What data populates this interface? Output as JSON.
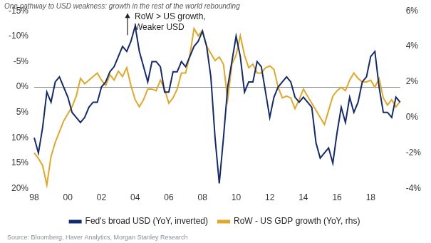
{
  "chart_data": {
    "type": "line",
    "title": "One pathway to USD weakness: growth in the rest of the world rebounding",
    "annotation": [
      "RoW > US growth,",
      "Weaker USD"
    ],
    "source": "Source: Bloomberg, Haver Analytics, Morgan Stanley Research",
    "categories": [
      "98",
      null,
      null,
      null,
      null,
      null,
      null,
      null,
      "00",
      null,
      null,
      null,
      null,
      null,
      null,
      null,
      "02",
      null,
      null,
      null,
      null,
      null,
      null,
      null,
      "04",
      null,
      null,
      null,
      null,
      null,
      null,
      null,
      "06",
      null,
      null,
      null,
      null,
      null,
      null,
      null,
      "08",
      null,
      null,
      null,
      null,
      null,
      null,
      null,
      "10",
      null,
      null,
      null,
      null,
      null,
      null,
      null,
      "12",
      null,
      null,
      null,
      null,
      null,
      null,
      null,
      "14",
      null,
      null,
      null,
      null,
      null,
      null,
      null,
      "16",
      null,
      null,
      null,
      null,
      null,
      null,
      null,
      "18",
      null,
      null,
      null,
      null,
      null,
      null,
      null
    ],
    "series": [
      {
        "name": "Fed's broad USD (YoY, inverted)",
        "color": "#132a6e",
        "axis": "y",
        "values": [
          10,
          13,
          8,
          1,
          3,
          -1,
          -2,
          0,
          2,
          5,
          6,
          7,
          6,
          4,
          3,
          3,
          0,
          -1,
          -3,
          -4,
          -6,
          -8,
          -7,
          -9,
          -12,
          -7,
          -4,
          -1,
          -5,
          -5,
          -4,
          1,
          1,
          -3,
          -3,
          -5,
          -4,
          -6,
          -8,
          -9,
          -11,
          -8,
          -2,
          10,
          19,
          10,
          0,
          -5,
          -10,
          -6,
          1,
          -1,
          -1,
          -5,
          -4,
          1,
          6,
          2,
          0,
          -1,
          -2,
          -1,
          2,
          3,
          2,
          3,
          4,
          11,
          14,
          13,
          12,
          15,
          9,
          4,
          7,
          2,
          5,
          3,
          -1,
          -2,
          -6,
          -7,
          0,
          5,
          5,
          6,
          2,
          3
        ]
      },
      {
        "name": "RoW - US GDP growth (YoY, rhs)",
        "color": "#e2a825",
        "axis": "y2",
        "values": [
          -2.0,
          -2.3,
          -2.7,
          -3.8,
          -2.2,
          -1.4,
          -0.8,
          -0.2,
          0.2,
          0.6,
          1.2,
          2.2,
          1.9,
          2.1,
          2.3,
          2.5,
          2.1,
          1.8,
          2.4,
          2.1,
          2.6,
          2.3,
          2.8,
          1.8,
          1.0,
          0.6,
          1.0,
          1.6,
          1.6,
          1.5,
          2.1,
          1.6,
          0.8,
          1.1,
          1.6,
          2.5,
          2.5,
          3.5,
          5.0,
          4.6,
          4.9,
          4.0,
          3.6,
          3.2,
          3.4,
          3.0,
          1.0,
          3.0,
          3.5,
          4.6,
          3.5,
          2.8,
          3.0,
          2.5,
          2.5,
          2.8,
          2.9,
          2.7,
          1.7,
          1.1,
          1.2,
          1.1,
          0.5,
          1.0,
          1.6,
          1.2,
          0.8,
          0.4,
          0.0,
          -0.4,
          0.4,
          1.2,
          1.5,
          1.7,
          1.5,
          2.1,
          2.5,
          2.2,
          2.0,
          2.0,
          2.1,
          1.7,
          2.2,
          1.1,
          0.7,
          1.0,
          0.6,
          0.9
        ]
      }
    ],
    "ylim": [
      -15,
      20
    ],
    "yticks": [
      {
        "value": -15,
        "label": "-15%"
      },
      {
        "value": -10,
        "label": "-10%"
      },
      {
        "value": -5,
        "label": "-5%"
      },
      {
        "value": 0,
        "label": "0%"
      },
      {
        "value": 5,
        "label": "5%"
      },
      {
        "value": 10,
        "label": "10%"
      },
      {
        "value": 15,
        "label": "15%"
      },
      {
        "value": 20,
        "label": "20%"
      }
    ],
    "y2lim": [
      -4,
      6
    ],
    "y2ticks": [
      {
        "value": -4,
        "label": "-4%"
      },
      {
        "value": -2,
        "label": "-2%"
      },
      {
        "value": 0,
        "label": "0%"
      },
      {
        "value": 2,
        "label": "2%"
      },
      {
        "value": 4,
        "label": "4%"
      },
      {
        "value": 6,
        "label": "6%"
      }
    ],
    "inverted": "y",
    "grid": false,
    "legend": "bottom"
  }
}
